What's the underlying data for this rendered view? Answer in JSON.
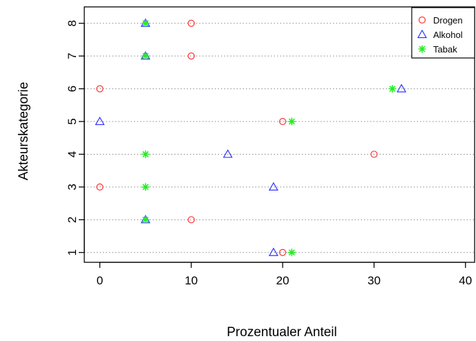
{
  "chart_data": {
    "type": "scatter",
    "xlabel": "Prozentualer Anteil",
    "ylabel": "Akteurskategorie",
    "xlim": [
      -1.7,
      41
    ],
    "ylim": [
      0.7,
      8.5
    ],
    "x_ticks": [
      0,
      10,
      20,
      30,
      40
    ],
    "y_ticks": [
      1,
      2,
      3,
      4,
      5,
      6,
      7,
      8
    ],
    "grid": "horizontal dotted",
    "legend_position": "top-right",
    "series": [
      {
        "name": "Drogen",
        "marker": "circle",
        "color": "#ff3333",
        "points": [
          {
            "x": 20,
            "y": 1
          },
          {
            "x": 10,
            "y": 2
          },
          {
            "x": 0,
            "y": 3
          },
          {
            "x": 30,
            "y": 4
          },
          {
            "x": 20,
            "y": 5
          },
          {
            "x": 0,
            "y": 6
          },
          {
            "x": 10,
            "y": 7
          },
          {
            "x": 10,
            "y": 8
          }
        ]
      },
      {
        "name": "Alkohol",
        "marker": "triangle",
        "color": "#3333ff",
        "points": [
          {
            "x": 19,
            "y": 1
          },
          {
            "x": 5,
            "y": 2
          },
          {
            "x": 19,
            "y": 3
          },
          {
            "x": 14,
            "y": 4
          },
          {
            "x": 0,
            "y": 5
          },
          {
            "x": 33,
            "y": 6
          },
          {
            "x": 5,
            "y": 7
          },
          {
            "x": 5,
            "y": 8
          }
        ]
      },
      {
        "name": "Tabak",
        "marker": "asterisk",
        "color": "#22ee22",
        "points": [
          {
            "x": 21,
            "y": 1
          },
          {
            "x": 5,
            "y": 2
          },
          {
            "x": 5,
            "y": 3
          },
          {
            "x": 5,
            "y": 4
          },
          {
            "x": 21,
            "y": 5
          },
          {
            "x": 32,
            "y": 6
          },
          {
            "x": 5,
            "y": 7
          },
          {
            "x": 5,
            "y": 8
          }
        ]
      }
    ]
  }
}
